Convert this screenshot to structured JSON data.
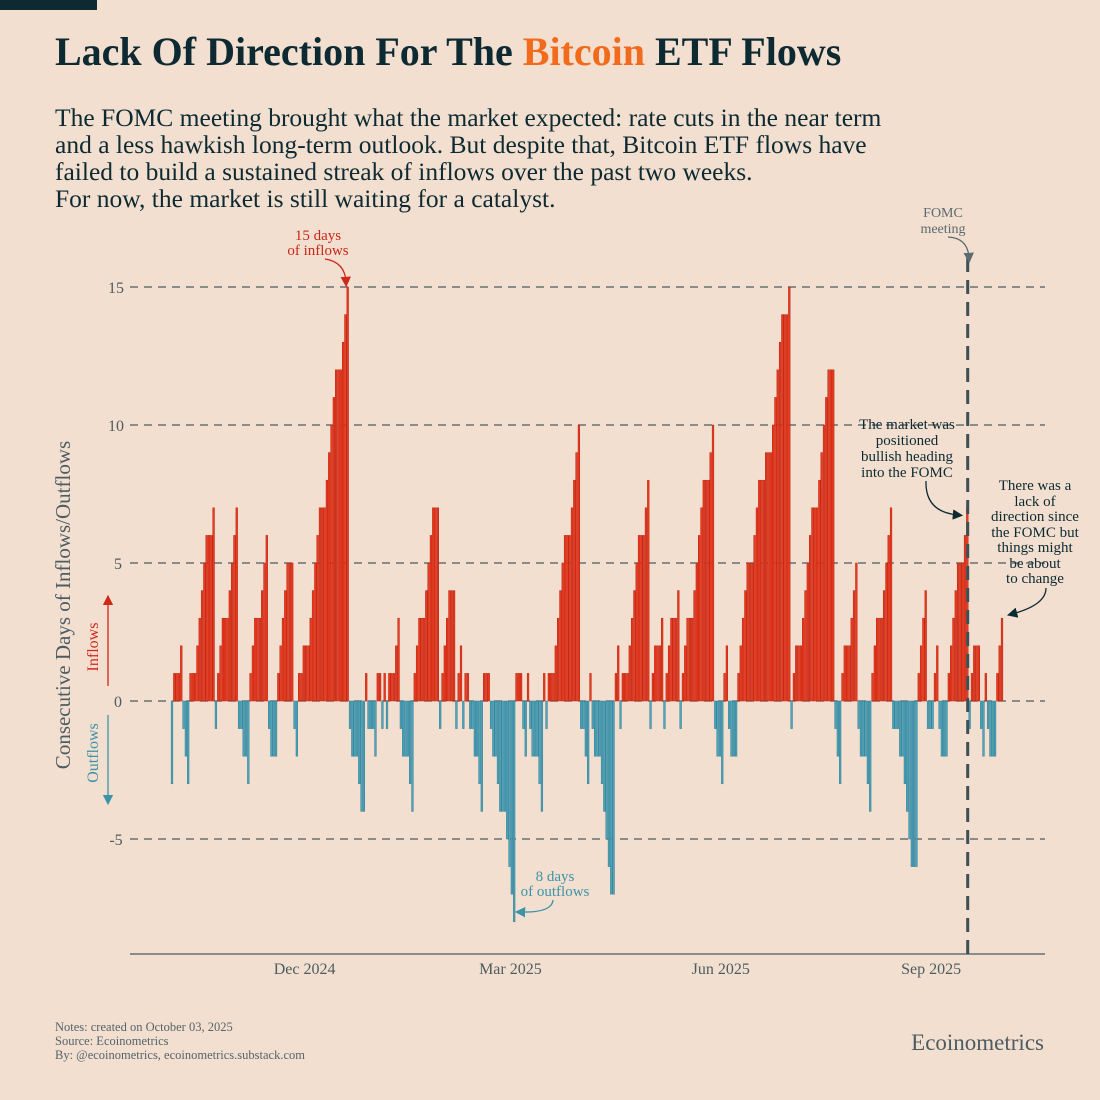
{
  "header": {
    "title_parts": [
      "Lack Of Direction For The ",
      "Bitcoin",
      " ETF Flows"
    ],
    "subtitle_lines": [
      "The FOMC meeting brought what the market expected: rate cuts in the near term",
      "and a less hawkish long-term outlook. But despite that, Bitcoin ETF flows have",
      "failed to build a sustained streak of inflows over the past two weeks.",
      "For now, the market is still waiting for a catalyst."
    ]
  },
  "colors": {
    "background": "#f2dfcf",
    "inflow": "#ee3a1f",
    "inflow_edge": "#b8220f",
    "outflow": "#4fa3ba",
    "outflow_edge": "#2f7f95",
    "title": "#0d2a33",
    "accent": "#f26a1b",
    "grid": "#4d5a5f"
  },
  "chart_data": {
    "type": "bar",
    "title": "Lack Of Direction For The Bitcoin ETF Flows",
    "ylabel": "Consecutive Days of Inflows/Outflows",
    "inflows_label": "Inflows",
    "outflows_label": "Outflows",
    "ylim": [
      -9.2,
      15.5
    ],
    "y_ticks": [
      15,
      10,
      5,
      0,
      -5
    ],
    "y_tick_labels": [
      "15",
      "10",
      "5",
      "0",
      "-5"
    ],
    "grid": true,
    "x_start": "2024-10-04",
    "x_end": "2025-10-02",
    "x_ticks": [
      {
        "date": "2024-12-01",
        "label": "Dec 2024"
      },
      {
        "date": "2025-03-01",
        "label": "Mar 2025"
      },
      {
        "date": "2025-06-01",
        "label": "Jun 2025"
      },
      {
        "date": "2025-09-01",
        "label": "Sep 2025"
      }
    ],
    "fomc_date": "2025-09-17",
    "daily_values": [
      -3,
      1,
      1,
      1,
      2,
      -1,
      -2,
      -3,
      1,
      1,
      1,
      2,
      3,
      4,
      5,
      6,
      6,
      6,
      7,
      -1,
      1,
      2,
      3,
      3,
      3,
      4,
      5,
      6,
      7,
      -1,
      -1,
      -2,
      -2,
      -3,
      1,
      2,
      3,
      3,
      3,
      4,
      5,
      6,
      -1,
      -2,
      -2,
      -2,
      1,
      2,
      3,
      4,
      5,
      5,
      5,
      -1,
      -2,
      1,
      1,
      2,
      2,
      2,
      3,
      4,
      5,
      6,
      7,
      7,
      7,
      8,
      9,
      10,
      11,
      12,
      12,
      12,
      13,
      14,
      15,
      -1,
      -2,
      -2,
      -2,
      -3,
      -4,
      -4,
      1,
      -1,
      -1,
      -1,
      -2,
      1,
      1,
      -1,
      1,
      -1,
      1,
      1,
      1,
      2,
      3,
      -1,
      -2,
      -2,
      -2,
      -3,
      -4,
      1,
      2,
      3,
      3,
      3,
      4,
      5,
      6,
      7,
      7,
      7,
      -1,
      1,
      2,
      3,
      4,
      4,
      4,
      -1,
      1,
      2,
      -1,
      1,
      1,
      -1,
      -1,
      -2,
      -2,
      -3,
      -4,
      1,
      1,
      1,
      -1,
      -2,
      -2,
      -3,
      -4,
      -4,
      -4,
      -5,
      -6,
      -7,
      -8,
      1,
      1,
      1,
      -1,
      -2,
      1,
      -1,
      -2,
      -2,
      -2,
      -3,
      -4,
      1,
      -1,
      1,
      1,
      1,
      2,
      3,
      4,
      5,
      6,
      6,
      6,
      7,
      8,
      9,
      10,
      -1,
      -1,
      -2,
      -3,
      1,
      -1,
      -2,
      -2,
      -2,
      -3,
      -4,
      -5,
      -6,
      -7,
      -7,
      1,
      2,
      -1,
      1,
      1,
      1,
      2,
      3,
      4,
      5,
      6,
      6,
      6,
      7,
      8,
      -1,
      1,
      2,
      2,
      2,
      3,
      -1,
      1,
      2,
      3,
      3,
      3,
      4,
      -1,
      1,
      2,
      3,
      3,
      3,
      4,
      5,
      6,
      7,
      8,
      8,
      8,
      9,
      10,
      -1,
      -2,
      -2,
      -3,
      1,
      2,
      -1,
      -2,
      -2,
      -2,
      1,
      2,
      3,
      4,
      5,
      5,
      5,
      6,
      7,
      8,
      8,
      8,
      9,
      9,
      9,
      10,
      11,
      12,
      13,
      14,
      14,
      14,
      15,
      -1,
      1,
      2,
      2,
      2,
      3,
      4,
      5,
      6,
      7,
      7,
      7,
      8,
      9,
      10,
      11,
      12,
      12,
      12,
      -1,
      -2,
      -3,
      1,
      2,
      2,
      2,
      3,
      4,
      5,
      -1,
      -2,
      -2,
      -2,
      -3,
      -4,
      1,
      2,
      3,
      3,
      3,
      4,
      5,
      6,
      7,
      -1,
      -1,
      -1,
      -2,
      -2,
      -3,
      -4,
      -5,
      -6,
      -6,
      -6,
      1,
      2,
      3,
      4,
      -1,
      -1,
      -1,
      1,
      2,
      -1,
      -2,
      -2,
      -2,
      1,
      2,
      3,
      4,
      5,
      5,
      5,
      6,
      7,
      -1,
      1,
      2,
      2,
      2,
      -1,
      -2,
      1,
      -1,
      -2,
      -2,
      -2,
      1,
      2,
      3
    ],
    "annotations": {
      "max_inflows": [
        "15 days",
        "of inflows"
      ],
      "max_outflows": [
        "8 days",
        "of outflows"
      ],
      "fomc": [
        "FOMC",
        "meeting"
      ],
      "bullish": [
        "The market was",
        "positioned",
        "bullish heading",
        "into the FOMC"
      ],
      "lack": [
        "There was a",
        "lack of",
        "direction since",
        "the FOMC but",
        "things might",
        "be about",
        "to change"
      ]
    }
  },
  "footer": {
    "notes": "Notes: created on October 03, 2025",
    "source": "Source: Ecoinometrics",
    "by": "By: @ecoinometrics, ecoinometrics.substack.com",
    "brand": "Ecoinometrics"
  }
}
